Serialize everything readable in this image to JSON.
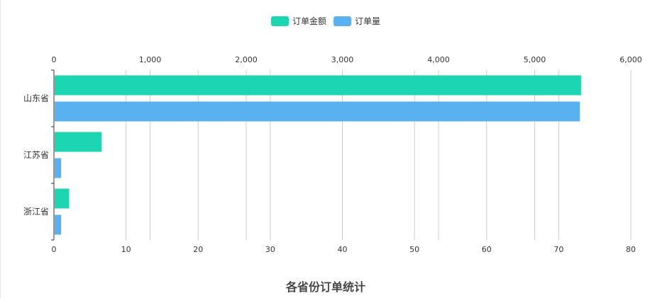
{
  "chart_data": {
    "type": "bar",
    "orientation": "horizontal",
    "title": "各省份订单统计",
    "categories": [
      "山东省",
      "江苏省",
      "浙江省"
    ],
    "series": [
      {
        "name": "订单金额",
        "axis": "bottom",
        "values": [
          73.1,
          6.6,
          2.1
        ],
        "color": "#1cd6b2"
      },
      {
        "name": "订单量",
        "axis": "top",
        "values": [
          5470,
          75,
          75
        ],
        "color": "#5ab1ef"
      }
    ],
    "x_top_axis": {
      "range": [
        0,
        6000
      ],
      "ticks": [
        "0",
        "1,000",
        "2,000",
        "3,000",
        "4,000",
        "5,000",
        "6,000"
      ]
    },
    "x_bottom_axis": {
      "range": [
        0,
        80
      ],
      "ticks": [
        "0",
        "10",
        "20",
        "30",
        "40",
        "50",
        "60",
        "70",
        "80"
      ]
    },
    "grid": true,
    "legend_position": "top-center"
  }
}
